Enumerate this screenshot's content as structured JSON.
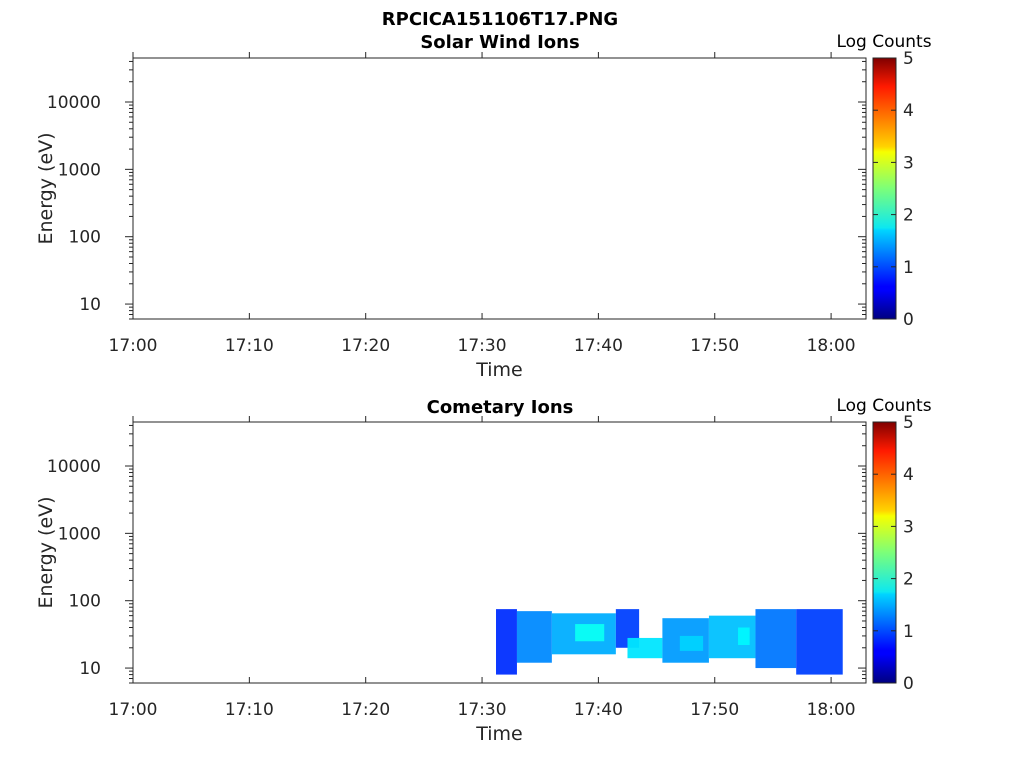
{
  "figure": {
    "title": "RPCICA151106T17.PNG"
  },
  "chart_data": [
    {
      "type": "heatmap",
      "title": "Solar Wind Ions",
      "xlabel": "Time",
      "ylabel": "Energy (eV)",
      "x_ticks": [
        "17:00",
        "17:10",
        "17:20",
        "17:30",
        "17:40",
        "17:50",
        "18:00"
      ],
      "x_range_minutes_after_1700": [
        0,
        63
      ],
      "y_scale": "log",
      "y_ticks": [
        "10",
        "100",
        "1000",
        "10000"
      ],
      "y_range_ev": [
        6,
        45000
      ],
      "colorbar": {
        "label": "Log Counts",
        "ticks": [
          "0",
          "1",
          "2",
          "3",
          "4",
          "5"
        ],
        "range": [
          0,
          5
        ],
        "colormap": "jet"
      },
      "data_present": false,
      "blocks": []
    },
    {
      "type": "heatmap",
      "title": "Cometary Ions",
      "xlabel": "Time",
      "ylabel": "Energy (eV)",
      "x_ticks": [
        "17:00",
        "17:10",
        "17:20",
        "17:30",
        "17:40",
        "17:50",
        "18:00"
      ],
      "x_range_minutes_after_1700": [
        0,
        63
      ],
      "y_scale": "log",
      "y_ticks": [
        "10",
        "100",
        "1000",
        "10000"
      ],
      "y_range_ev": [
        6,
        45000
      ],
      "colorbar": {
        "label": "Log Counts",
        "ticks": [
          "0",
          "1",
          "2",
          "3",
          "4",
          "5"
        ],
        "range": [
          0,
          5
        ],
        "colormap": "jet"
      },
      "data_present": true,
      "data_time_range": [
        "17:31",
        "18:01"
      ],
      "data_energy_range_ev": [
        6,
        80
      ],
      "blocks": [
        {
          "t": [
            31.2,
            33.0
          ],
          "e": [
            8,
            75
          ],
          "v": 0.5
        },
        {
          "t": [
            33.0,
            36.0
          ],
          "e": [
            12,
            70
          ],
          "v": 1.0
        },
        {
          "t": [
            36.0,
            41.5
          ],
          "e": [
            16,
            65
          ],
          "v": 1.2
        },
        {
          "t": [
            38.0,
            40.5
          ],
          "e": [
            25,
            45
          ],
          "v": 1.7
        },
        {
          "t": [
            41.5,
            43.5
          ],
          "e": [
            20,
            75
          ],
          "v": 0.6
        },
        {
          "t": [
            42.5,
            45.5
          ],
          "e": [
            14,
            28
          ],
          "v": 1.5
        },
        {
          "t": [
            45.5,
            49.5
          ],
          "e": [
            12,
            55
          ],
          "v": 1.1
        },
        {
          "t": [
            47.0,
            49.0
          ],
          "e": [
            18,
            30
          ],
          "v": 1.4
        },
        {
          "t": [
            49.5,
            53.5
          ],
          "e": [
            14,
            60
          ],
          "v": 1.3
        },
        {
          "t": [
            52.0,
            53.0
          ],
          "e": [
            22,
            40
          ],
          "v": 1.6
        },
        {
          "t": [
            53.5,
            57.0
          ],
          "e": [
            10,
            75
          ],
          "v": 0.9
        },
        {
          "t": [
            57.0,
            61.0
          ],
          "e": [
            8,
            75
          ],
          "v": 0.6
        }
      ]
    }
  ]
}
